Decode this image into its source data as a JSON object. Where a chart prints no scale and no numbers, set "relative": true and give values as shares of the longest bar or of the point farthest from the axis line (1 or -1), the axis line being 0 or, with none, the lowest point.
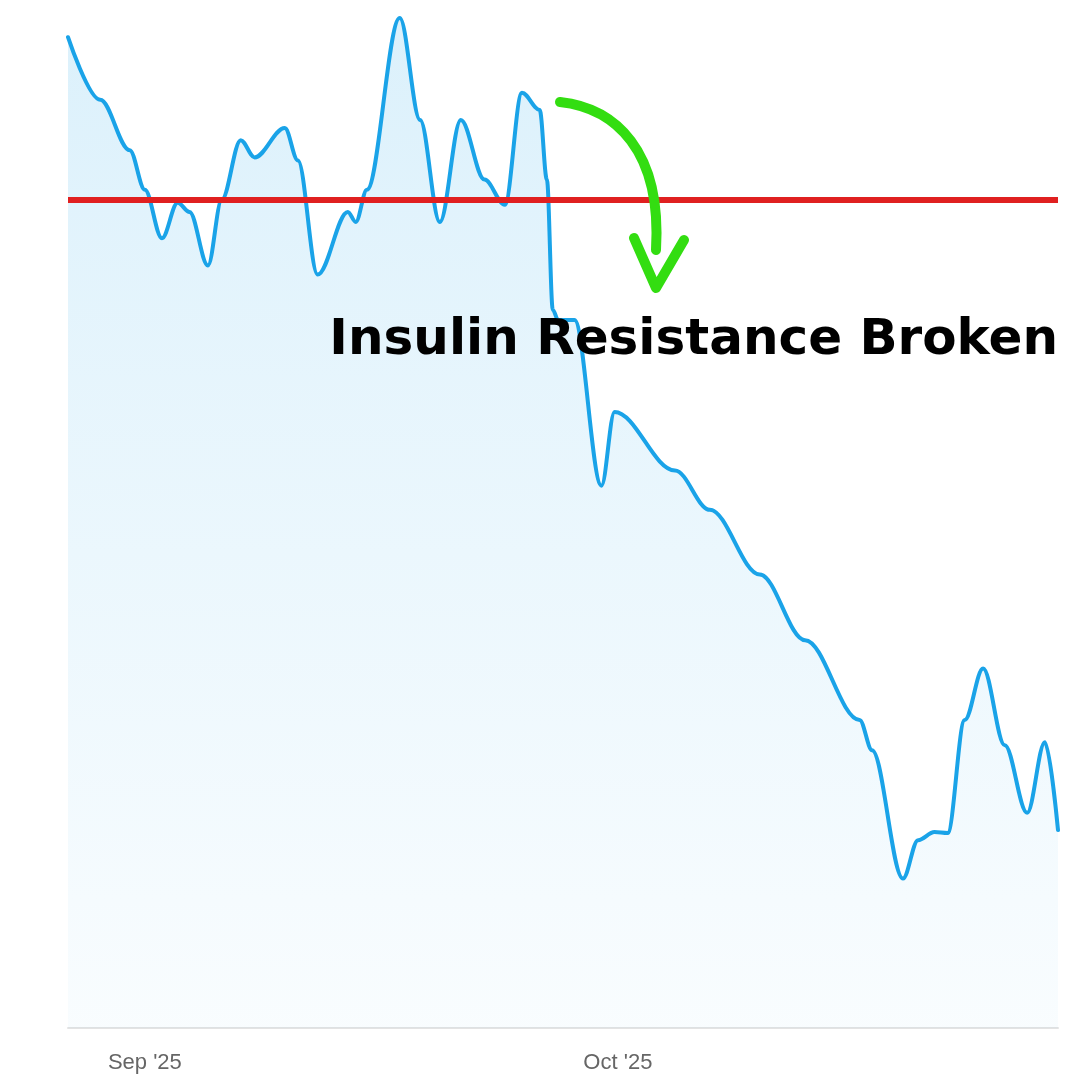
{
  "chart_data": {
    "type": "area",
    "relative": true,
    "x": [
      "2025-08-27T03:00",
      "2025-08-29T04:00",
      "2025-08-31T01:00",
      "2025-09-01T00:00",
      "2025-09-02T02:00",
      "2025-09-03T02:00",
      "2025-09-03T20:00",
      "2025-09-05T00:00",
      "2025-09-05T21:00",
      "2025-09-07T02:00",
      "2025-09-07T23:00",
      "2025-09-09T21:00",
      "2025-09-10T17:00",
      "2025-09-11T23:00",
      "2025-09-13T21:00",
      "2025-09-14T09:00",
      "2025-09-15T02:00",
      "2025-09-17T04:00",
      "2025-09-18T11:00",
      "2025-09-19T17:00",
      "2025-09-21T01:00",
      "2025-09-22T13:00",
      "2025-09-23T20:00",
      "2025-09-24T22:00",
      "2025-09-26T01:00",
      "2025-09-26T12:00",
      "2025-09-26T21:00",
      "2025-09-27T05:00",
      "2025-09-28T06:00",
      "2025-09-29T23:00",
      "2025-09-30T19:00",
      "2025-10-04T15:00",
      "2025-10-06T20:00",
      "2025-10-10T00:00",
      "2025-10-12T21:00",
      "2025-10-16T08:00",
      "2025-10-17T03:00",
      "2025-10-19T02:00",
      "2025-10-20T01:00",
      "2025-10-21T02:00",
      "2025-10-21T22:00",
      "2025-10-23T00:00",
      "2025-10-24T04:00",
      "2025-10-25T13:00",
      "2025-10-26T23:00",
      "2025-10-28T02:00",
      "2025-10-28T22:00"
    ],
    "series": [
      {
        "color": "#1aa3e8",
        "values": [
          0.981,
          0.919,
          0.869,
          0.83,
          0.782,
          0.817,
          0.808,
          0.755,
          0.82,
          0.879,
          0.862,
          0.891,
          0.859,
          0.746,
          0.808,
          0.798,
          0.83,
          1,
          0.899,
          0.798,
          0.899,
          0.84,
          0.815,
          0.926,
          0.909,
          0.84,
          0.711,
          0.701,
          0.701,
          0.537,
          0.61,
          0.552,
          0.513,
          0.449,
          0.384,
          0.305,
          0.275,
          0.148,
          0.186,
          0.194,
          0.193,
          0.305,
          0.356,
          0.28,
          0.213,
          0.283,
          0.196
        ]
      }
    ],
    "xlim": [
      "2025-08-27T03:00",
      "2025-10-28T22:00"
    ],
    "xticks": [
      {
        "value": "2025-09-01",
        "label": "Sep '25"
      },
      {
        "value": "2025-10-01",
        "label": "Oct '25"
      }
    ],
    "ref_lines": [
      {
        "axis": "y",
        "value": 0.823,
        "color": "#e02020"
      }
    ],
    "annotations": [
      "Insulin Resistance Broken"
    ],
    "marker": "none",
    "line_style": "solid"
  }
}
